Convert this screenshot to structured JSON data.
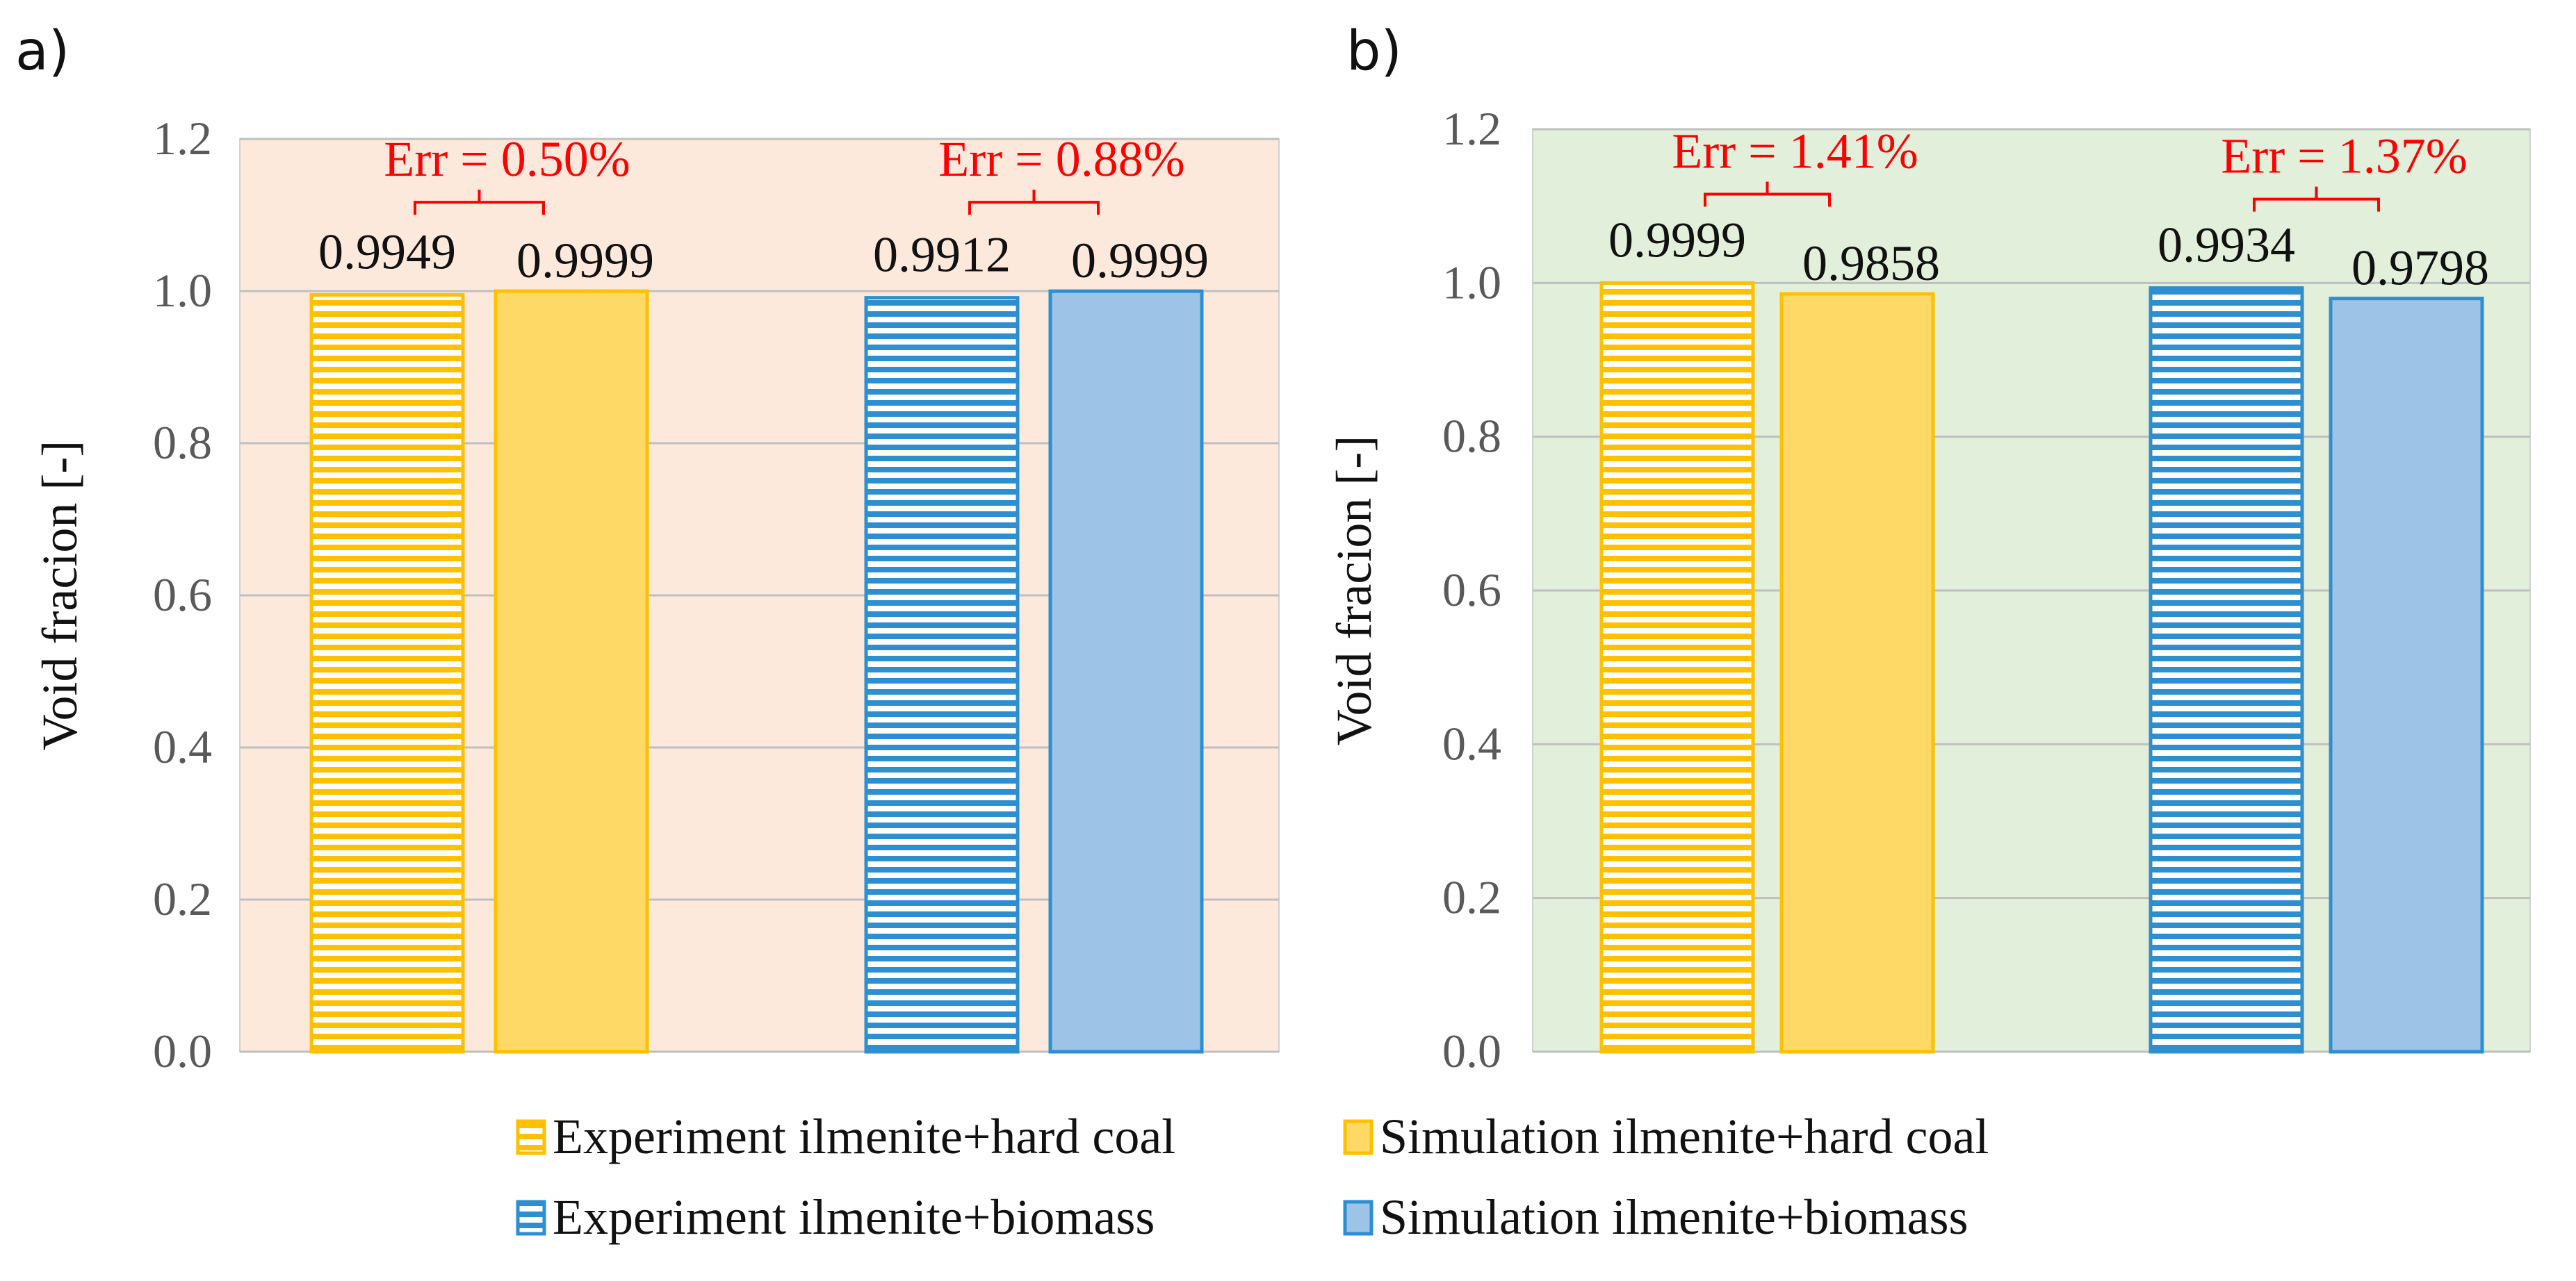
{
  "figure": {
    "legend": [
      {
        "label": "Experiment ilmenite+hard coal",
        "style": "striped",
        "fill": "#ffd966",
        "stroke": "#ffc000"
      },
      {
        "label": "Simulation ilmenite+hard coal",
        "style": "solid",
        "fill": "#ffd966",
        "stroke": "#ffc000"
      },
      {
        "label": "Experiment ilmenite+biomass",
        "style": "striped",
        "fill": "#9dc3e6",
        "stroke": "#2e8fd0"
      },
      {
        "label": "Simulation ilmenite+biomass",
        "style": "solid",
        "fill": "#9dc3e6",
        "stroke": "#2e8fd0"
      }
    ]
  },
  "chart_data": [
    {
      "panel": "a)",
      "type": "bar",
      "ylabel": "Void fracion [-]",
      "ylim": [
        0,
        1.2
      ],
      "yticks": [
        "0.0",
        "0.2",
        "0.4",
        "0.6",
        "0.8",
        "1.0",
        "1.2"
      ],
      "background": "#fce9dc",
      "groups": [
        {
          "err_label": "Err = 0.50%",
          "bars": [
            {
              "series": "Experiment ilmenite+hard coal",
              "value": 0.9949,
              "label": "0.9949"
            },
            {
              "series": "Simulation ilmenite+hard coal",
              "value": 0.9999,
              "label": "0.9999"
            }
          ]
        },
        {
          "err_label": "Err = 0.88%",
          "bars": [
            {
              "series": "Experiment ilmenite+biomass",
              "value": 0.9912,
              "label": "0.9912"
            },
            {
              "series": "Simulation ilmenite+biomass",
              "value": 0.9999,
              "label": "0.9999"
            }
          ]
        }
      ]
    },
    {
      "panel": "b)",
      "type": "bar",
      "ylabel": "Void fracion [-]",
      "ylim": [
        0,
        1.2
      ],
      "yticks": [
        "0.0",
        "0.2",
        "0.4",
        "0.6",
        "0.8",
        "1.0",
        "1.2"
      ],
      "background": "#e2efda",
      "groups": [
        {
          "err_label": "Err = 1.41%",
          "bars": [
            {
              "series": "Experiment ilmenite+hard coal",
              "value": 0.9999,
              "label": "0.9999"
            },
            {
              "series": "Simulation ilmenite+hard coal",
              "value": 0.9858,
              "label": "0.9858"
            }
          ]
        },
        {
          "err_label": "Err = 1.37%",
          "bars": [
            {
              "series": "Experiment ilmenite+biomass",
              "value": 0.9934,
              "label": "0.9934"
            },
            {
              "series": "Simulation ilmenite+biomass",
              "value": 0.9798,
              "label": "0.9798"
            }
          ]
        }
      ]
    }
  ]
}
